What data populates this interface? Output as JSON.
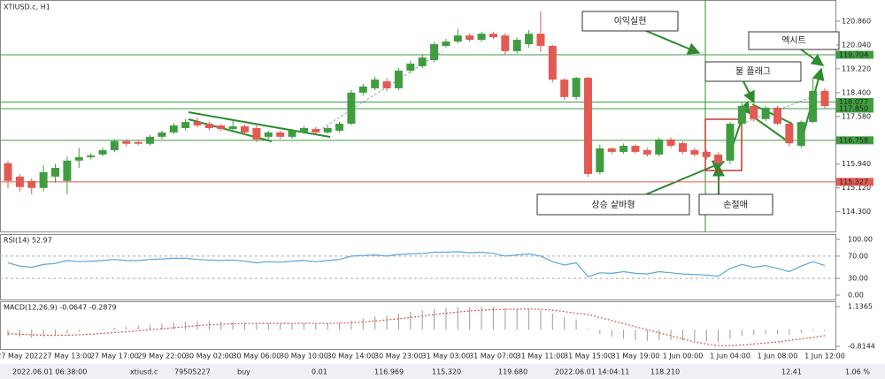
{
  "chart_data": [
    {
      "type": "candlestick",
      "title": "XTIUSD.c, H1",
      "categories": [
        null,
        "27 May 2022",
        null,
        null,
        null,
        "27 May 13:00",
        null,
        null,
        null,
        "27 May 17:00",
        null,
        null,
        null,
        "29 May 22:00",
        null,
        null,
        null,
        "30 May 02:00",
        null,
        null,
        null,
        "30 May 06:00",
        null,
        null,
        null,
        "30 May 10:00",
        null,
        null,
        null,
        "30 May 14:00",
        null,
        null,
        null,
        "30 May 23:00",
        null,
        null,
        null,
        "31 May 03:00",
        null,
        null,
        null,
        "31 May 07:00",
        null,
        null,
        null,
        "31 May 11:00",
        null,
        null,
        null,
        "31 May 15:00",
        null,
        null,
        null,
        "31 May 19:00",
        null,
        null,
        null,
        "1 Jun 00:00",
        null,
        null,
        null,
        "1 Jun 04:00",
        null,
        null,
        null,
        "1 Jun 08:00",
        null,
        null,
        null,
        "1 Jun 12:00"
      ],
      "open": [
        115.97,
        115.51,
        115.36,
        115.12,
        115.51,
        115.36,
        116.06,
        116.18,
        116.27,
        116.42,
        116.73,
        116.7,
        116.64,
        116.88,
        117.03,
        117.18,
        117.39,
        117.33,
        117.27,
        117.15,
        117.24,
        117.18,
        116.88,
        117.03,
        116.88,
        117.03,
        117.15,
        117.03,
        117.09,
        117.33,
        118.4,
        118.55,
        118.79,
        118.55,
        119.16,
        119.31,
        119.52,
        120.01,
        120.16,
        120.37,
        120.22,
        120.43,
        120.37,
        119.83,
        120.07,
        120.43,
        120.01,
        118.85,
        118.25,
        118.91,
        115.66,
        116.48,
        116.36,
        116.57,
        116.42,
        116.27,
        116.79,
        116.66,
        116.42,
        116.36,
        116.27,
        116.06,
        117.33,
        117.94,
        117.49,
        117.88,
        117.33,
        116.57,
        117.39,
        118.46
      ],
      "high": [
        116.05,
        115.6,
        115.45,
        115.9,
        115.95,
        116.2,
        116.5,
        116.32,
        116.5,
        116.8,
        116.8,
        116.78,
        116.95,
        117.1,
        117.35,
        117.5,
        117.55,
        117.4,
        117.32,
        117.45,
        117.3,
        117.3,
        117.1,
        117.1,
        117.15,
        117.25,
        117.22,
        117.25,
        117.4,
        118.5,
        118.7,
        118.95,
        118.9,
        119.25,
        119.5,
        119.7,
        120.15,
        120.25,
        120.6,
        120.45,
        120.5,
        120.5,
        120.45,
        120.3,
        120.55,
        121.2,
        120.05,
        118.9,
        118.95,
        118.95,
        116.6,
        116.52,
        116.65,
        116.62,
        116.5,
        116.85,
        116.85,
        116.72,
        116.5,
        116.42,
        116.35,
        117.4,
        118.05,
        118.0,
        117.95,
        117.95,
        117.4,
        117.45,
        118.9,
        118.55
      ],
      "low": [
        115.1,
        115.0,
        114.9,
        115.0,
        115.3,
        114.9,
        115.8,
        116.1,
        116.2,
        116.35,
        116.55,
        116.58,
        116.58,
        116.8,
        116.97,
        117.1,
        117.2,
        117.1,
        117.08,
        117.08,
        116.95,
        116.7,
        116.8,
        116.8,
        116.82,
        116.98,
        116.97,
        116.98,
        117.02,
        117.28,
        118.3,
        118.48,
        118.45,
        118.48,
        119.08,
        119.25,
        119.45,
        119.95,
        120.1,
        120.15,
        120.15,
        120.25,
        119.7,
        119.75,
        119.95,
        119.8,
        118.75,
        118.15,
        118.15,
        115.5,
        115.58,
        116.28,
        116.3,
        116.3,
        116.2,
        116.2,
        116.5,
        116.3,
        116.2,
        116.1,
        115.9,
        115.95,
        117.25,
        117.4,
        117.42,
        117.28,
        116.55,
        116.5,
        117.35,
        117.85
      ],
      "close": [
        115.36,
        115.15,
        115.12,
        115.66,
        115.81,
        116.06,
        116.18,
        116.24,
        116.42,
        116.73,
        116.64,
        116.64,
        116.88,
        117.03,
        117.27,
        117.39,
        117.27,
        117.18,
        117.15,
        117.24,
        117.03,
        116.79,
        117.03,
        116.88,
        117.09,
        117.18,
        117.03,
        117.18,
        117.33,
        118.4,
        118.61,
        118.85,
        118.55,
        119.16,
        119.4,
        119.61,
        120.07,
        120.16,
        120.37,
        120.22,
        120.43,
        120.31,
        119.83,
        120.22,
        120.43,
        120.01,
        118.85,
        118.25,
        118.91,
        115.6,
        116.48,
        116.36,
        116.57,
        116.36,
        116.27,
        116.79,
        116.57,
        116.36,
        116.27,
        116.18,
        115.97,
        117.33,
        117.94,
        117.49,
        117.88,
        117.33,
        116.66,
        117.39,
        118.46,
        117.94
      ],
      "up_color": "#3f9d3f",
      "down_color": "#e25a52",
      "ylim": [
        113.62,
        121.53
      ],
      "yticks": [
        {
          "value": 120.86,
          "label": "120.860"
        },
        {
          "value": 120.04,
          "label": "120.040"
        },
        {
          "value": 119.22,
          "label": "119.220"
        },
        {
          "value": 118.4,
          "label": "118.400"
        },
        {
          "value": 117.58,
          "label": "117.580"
        },
        {
          "value": 115.94,
          "label": "115.940"
        },
        {
          "value": 115.12,
          "label": "115.120"
        },
        {
          "value": 114.3,
          "label": "114.300"
        }
      ],
      "hlines": [
        {
          "value": 119.704,
          "label": "119.704",
          "color": "#3f9d3f"
        },
        {
          "value": 118.077,
          "label": "118.077",
          "color": "#3f9d3f"
        },
        {
          "value": 117.85,
          "label": "117.850",
          "color": "#3f9d3f"
        },
        {
          "value": 116.758,
          "label": "116.758",
          "color": "#3f9d3f"
        },
        {
          "value": 115.327,
          "label": "115.327",
          "color": "#e25a52"
        }
      ],
      "annotations": [
        "이익실현",
        "엑시트",
        "불 플래그",
        "상승 샅바형",
        "손절매"
      ]
    },
    {
      "type": "line",
      "title": "RSI(14) 52.97",
      "color": "#5aa6dc",
      "values": [
        58,
        52,
        50,
        55,
        57,
        62,
        60,
        61,
        62,
        64,
        62,
        62,
        64,
        65,
        66,
        66,
        64,
        63,
        62,
        63,
        61,
        58,
        60,
        59,
        61,
        62,
        60,
        62,
        64,
        70,
        71,
        72,
        70,
        73,
        74,
        75,
        77,
        77,
        78,
        76,
        77,
        75,
        70,
        72,
        74,
        70,
        60,
        54,
        58,
        33,
        40,
        39,
        42,
        39,
        38,
        42,
        40,
        38,
        37,
        36,
        34,
        48,
        55,
        50,
        53,
        48,
        42,
        52,
        60,
        52.97
      ],
      "ylim": [
        0,
        100
      ],
      "yticks": [
        {
          "value": 100,
          "label": "100.00"
        },
        {
          "value": 70,
          "label": "70.00"
        },
        {
          "value": 30,
          "label": "30.00"
        },
        {
          "value": 0,
          "label": "0.00"
        }
      ]
    },
    {
      "type": "macd",
      "title": "MACD(12,26,9) -0.0647 -0.2879",
      "color": "#9a9a9a",
      "signal_color": "#e0524a",
      "values": [
        -0.3,
        -0.35,
        -0.4,
        -0.35,
        -0.3,
        -0.2,
        -0.1,
        0,
        0.05,
        0.1,
        0.15,
        0.2,
        0.25,
        0.3,
        0.35,
        0.4,
        0.42,
        0.42,
        0.4,
        0.38,
        0.35,
        0.3,
        0.3,
        0.28,
        0.28,
        0.3,
        0.3,
        0.32,
        0.35,
        0.45,
        0.55,
        0.65,
        0.7,
        0.8,
        0.88,
        0.95,
        1.02,
        1.08,
        1.12,
        1.12,
        1.13,
        1.12,
        1.05,
        1.02,
        1.02,
        0.95,
        0.8,
        0.6,
        0.5,
        0.05,
        -0.2,
        -0.35,
        -0.45,
        -0.5,
        -0.55,
        -0.5,
        -0.5,
        -0.52,
        -0.55,
        -0.58,
        -0.62,
        -0.45,
        -0.3,
        -0.25,
        -0.2,
        -0.2,
        -0.25,
        -0.15,
        -0.05,
        -0.0647
      ],
      "signal": [
        -0.2,
        -0.22,
        -0.25,
        -0.27,
        -0.28,
        -0.27,
        -0.25,
        -0.22,
        -0.18,
        -0.14,
        -0.1,
        -0.05,
        0,
        0.05,
        0.1,
        0.15,
        0.2,
        0.24,
        0.27,
        0.29,
        0.3,
        0.31,
        0.31,
        0.31,
        0.31,
        0.31,
        0.31,
        0.31,
        0.32,
        0.34,
        0.38,
        0.43,
        0.48,
        0.54,
        0.6,
        0.67,
        0.74,
        0.81,
        0.87,
        0.92,
        0.96,
        0.99,
        1.0,
        1.01,
        1.02,
        1.0,
        0.96,
        0.89,
        0.81,
        0.75,
        0.6,
        0.45,
        0.3,
        0.15,
        0,
        -0.15,
        -0.3,
        -0.45,
        -0.6,
        -0.7,
        -0.78,
        -0.78,
        -0.75,
        -0.7,
        -0.65,
        -0.6,
        -0.52,
        -0.45,
        -0.38,
        -0.2879
      ],
      "ylim": [
        -0.8144,
        1.1365
      ],
      "yticks": [
        1.1365,
        -0.8144
      ]
    }
  ],
  "status_bar": [
    "2022.06.01 06:38:00",
    "xtiusd.c",
    "79505227",
    "buy",
    "0.01",
    "116.969",
    "115.320",
    "119.680",
    "2022.06.01 14:04:11",
    "118.210",
    "12.41",
    "1.06 %"
  ]
}
